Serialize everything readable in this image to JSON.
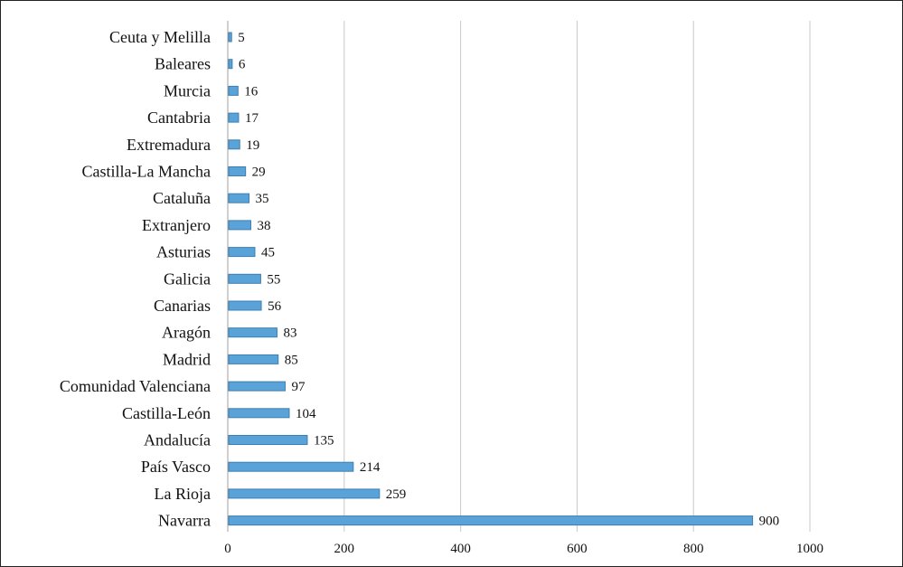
{
  "chart_data": {
    "type": "bar",
    "orientation": "horizontal",
    "categories": [
      "Ceuta y Melilla",
      "Baleares",
      "Murcia",
      "Cantabria",
      "Extremadura",
      "Castilla-La Mancha",
      "Cataluña",
      "Extranjero",
      "Asturias",
      "Galicia",
      "Canarias",
      "Aragón",
      "Madrid",
      "Comunidad Valenciana",
      "Castilla-León",
      "Andalucía",
      "País Vasco",
      "La Rioja",
      "Navarra"
    ],
    "values": [
      5,
      6,
      16,
      17,
      19,
      29,
      35,
      38,
      45,
      55,
      56,
      83,
      85,
      97,
      104,
      135,
      214,
      259,
      900
    ],
    "xlim": [
      0,
      1000
    ],
    "x_ticks": [
      0,
      200,
      400,
      600,
      800,
      1000
    ],
    "grid": "vertical",
    "data_labels": true,
    "bar_color": "#5aa3d8",
    "bar_edge_color": "#3d7fb3",
    "grid_color": "#c8c8c8",
    "title": "",
    "xlabel": "",
    "ylabel": ""
  }
}
